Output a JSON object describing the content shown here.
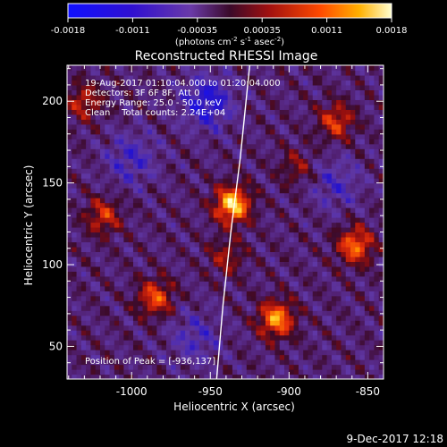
{
  "figure": {
    "title": "Reconstructed RHESSI Image",
    "xlabel": "Heliocentric X (arcsec)",
    "ylabel": "Heliocentric Y (arcsec)",
    "footer_timestamp": "9-Dec-2017 12:18",
    "colorbar": {
      "tick_labels": [
        "-0.0018",
        "-0.0011",
        "-0.00035",
        "0.00035",
        "0.0011",
        "0.0018"
      ],
      "units": "(photons cm",
      "units_exp1": "-2",
      "units_mid": " s",
      "units_exp2": "-1",
      "units_mid2": " asec",
      "units_exp3": "-2",
      "units_end": ")"
    },
    "info_lines": [
      "19-Aug-2017 01:10:04.000 to 01:20:04.000",
      "Detectors: 3F 6F 8F, Att 0",
      "Energy Range: 25.0 - 50.0 keV",
      "Clean    Total counts: 2.24E+04"
    ],
    "peak_text": "Position of Peak = [-936,137]"
  },
  "chart_data": {
    "type": "heatmap",
    "title": "Reconstructed RHESSI Image",
    "xlabel": "Heliocentric X (arcsec)",
    "ylabel": "Heliocentric Y (arcsec)",
    "x_ticks": [
      "-1000",
      "-950",
      "-900",
      "-850"
    ],
    "y_ticks": [
      "50",
      "100",
      "150",
      "200"
    ],
    "x_range": [
      -1041,
      -840
    ],
    "y_range": [
      30,
      222
    ],
    "value_range": [
      -0.0018,
      0.0018
    ],
    "peak": {
      "x": -936,
      "y": 137
    },
    "bright_sources": [
      {
        "x": -936,
        "y": 137,
        "level": 1.0
      },
      {
        "x": -908,
        "y": 67,
        "level": 0.82
      },
      {
        "x": -858,
        "y": 112,
        "level": 0.72
      },
      {
        "x": -870,
        "y": 188,
        "level": 0.55
      },
      {
        "x": -985,
        "y": 80,
        "level": 0.62
      },
      {
        "x": -1030,
        "y": 200,
        "level": 0.45
      },
      {
        "x": -1018,
        "y": 130,
        "level": 0.5
      },
      {
        "x": -940,
        "y": 105,
        "level": 0.35
      },
      {
        "x": -895,
        "y": 160,
        "level": 0.3
      }
    ],
    "dark_regions": [
      {
        "x": -952,
        "y": 200,
        "level": -0.55
      },
      {
        "x": -1000,
        "y": 165,
        "level": -0.35
      },
      {
        "x": -870,
        "y": 150,
        "level": -0.3
      },
      {
        "x": -960,
        "y": 55,
        "level": -0.3
      }
    ],
    "limb_curve": [
      [
        -946,
        30
      ],
      [
        -942,
        75
      ],
      [
        -937,
        120
      ],
      [
        -931,
        165
      ],
      [
        -925,
        222
      ]
    ]
  }
}
